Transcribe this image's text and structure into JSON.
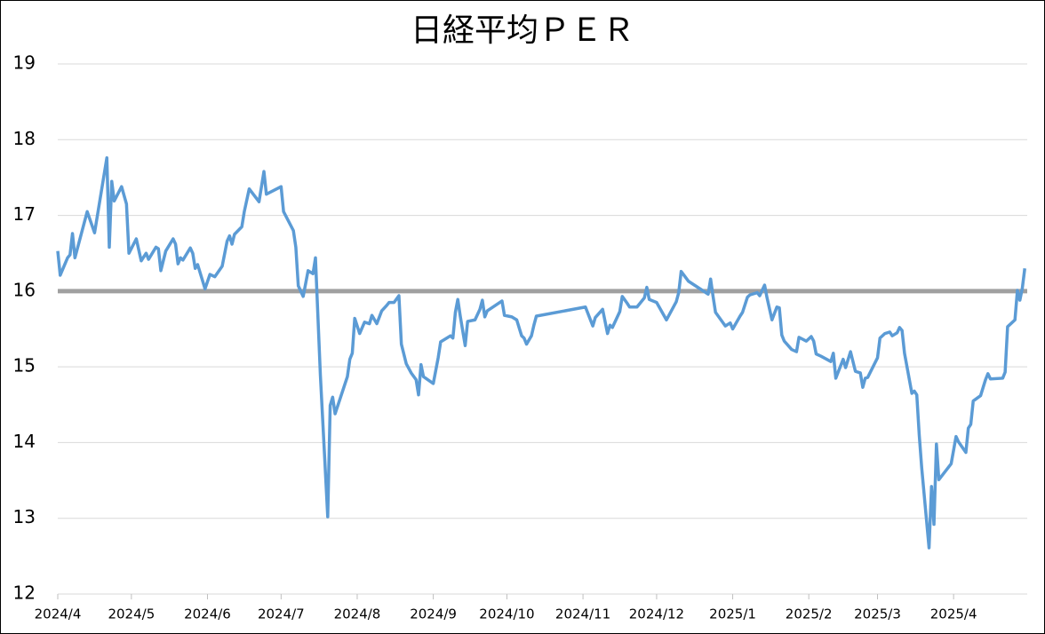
{
  "chart_data": {
    "type": "line",
    "title": "日経平均ＰＥＲ",
    "xlim": [
      0,
      395
    ],
    "xticks": [
      {
        "value": 0,
        "label": "2024/4"
      },
      {
        "value": 30,
        "label": "2024/5"
      },
      {
        "value": 61,
        "label": "2024/6"
      },
      {
        "value": 91,
        "label": "2024/7"
      },
      {
        "value": 122,
        "label": "2024/8"
      },
      {
        "value": 153,
        "label": "2024/9"
      },
      {
        "value": 183,
        "label": "2024/10"
      },
      {
        "value": 214,
        "label": "2024/11"
      },
      {
        "value": 244,
        "label": "2024/12"
      },
      {
        "value": 275,
        "label": "2025/1"
      },
      {
        "value": 306,
        "label": "2025/2"
      },
      {
        "value": 334,
        "label": "2025/3"
      },
      {
        "value": 365,
        "label": "2025/4"
      }
    ],
    "ylim": [
      12,
      19
    ],
    "yticks": [
      12,
      13,
      14,
      15,
      16,
      17,
      18,
      19
    ],
    "grid": true,
    "reference_line": 16,
    "reference_color": "#a0a0a0",
    "x": [
      0,
      1,
      4,
      5,
      6,
      7,
      12,
      15,
      20,
      21,
      22,
      23,
      26,
      28,
      29,
      32,
      34,
      36,
      37,
      40,
      41,
      42,
      44,
      47,
      48,
      49,
      50,
      51,
      54,
      55,
      56,
      57,
      60,
      62,
      64,
      67,
      69,
      70,
      71,
      72,
      75,
      76,
      78,
      82,
      84,
      85,
      91,
      92,
      96,
      97,
      98,
      100,
      102,
      104,
      105,
      107,
      110,
      111,
      112,
      113,
      118,
      119,
      120,
      121,
      123,
      125,
      127,
      128,
      130,
      132,
      134,
      135,
      137,
      139,
      140,
      142,
      144,
      146,
      147,
      148,
      149,
      153,
      155,
      156,
      160,
      161,
      162,
      163,
      164,
      166,
      167,
      170,
      172,
      173,
      174,
      175,
      181,
      182,
      185,
      187,
      189,
      190,
      191,
      193,
      194,
      195,
      215,
      218,
      219,
      222,
      224,
      225,
      226,
      229,
      230,
      232,
      233,
      236,
      239,
      240,
      241,
      244,
      248,
      251,
      252,
      253,
      254,
      257,
      265,
      266,
      267,
      268,
      272,
      274,
      275,
      278,
      279,
      281,
      282,
      285,
      286,
      287,
      288,
      289,
      291,
      293,
      294,
      295,
      296,
      299,
      301,
      302,
      305,
      307,
      308,
      309,
      311,
      315,
      316,
      317,
      320,
      321,
      323,
      325,
      327,
      328,
      329,
      330,
      334,
      335,
      337,
      339,
      340,
      342,
      343,
      344,
      345,
      348,
      349,
      350,
      351,
      352,
      355,
      356,
      357,
      358,
      359,
      364,
      366,
      367,
      370,
      371,
      372,
      373,
      376,
      378,
      379,
      380,
      385,
      386,
      387,
      390,
      391,
      392,
      393,
      394
    ],
    "series": [
      {
        "name": "PER",
        "color": "#5b9bd5",
        "values": [
          16.53,
          16.21,
          16.44,
          16.48,
          16.76,
          16.44,
          17.05,
          16.77,
          17.76,
          16.58,
          17.45,
          17.19,
          17.38,
          17.15,
          16.5,
          16.69,
          16.4,
          16.5,
          16.42,
          16.58,
          16.56,
          16.27,
          16.53,
          16.69,
          16.62,
          16.36,
          16.44,
          16.41,
          16.57,
          16.5,
          16.3,
          16.35,
          16.03,
          16.22,
          16.19,
          16.33,
          16.66,
          16.73,
          16.62,
          16.75,
          16.85,
          17.05,
          17.35,
          17.18,
          17.58,
          17.28,
          17.38,
          17.05,
          16.8,
          16.58,
          16.07,
          15.93,
          16.27,
          16.23,
          16.44,
          14.89,
          13.02,
          14.49,
          14.6,
          14.38,
          14.87,
          15.1,
          15.18,
          15.64,
          15.44,
          15.59,
          15.57,
          15.68,
          15.57,
          15.74,
          15.81,
          15.85,
          15.85,
          15.94,
          15.3,
          15.04,
          14.92,
          14.83,
          14.63,
          15.03,
          14.87,
          14.78,
          15.12,
          15.33,
          15.41,
          15.38,
          15.72,
          15.89,
          15.67,
          15.28,
          15.6,
          15.62,
          15.76,
          15.88,
          15.66,
          15.74,
          15.87,
          15.68,
          15.66,
          15.62,
          15.41,
          15.38,
          15.3,
          15.41,
          15.55,
          15.67,
          15.79,
          15.54,
          15.65,
          15.76,
          15.44,
          15.55,
          15.52,
          15.73,
          15.93,
          15.84,
          15.79,
          15.79,
          15.91,
          16.05,
          15.89,
          15.85,
          15.62,
          15.8,
          15.86,
          15.98,
          16.26,
          16.13,
          15.96,
          16.16,
          15.93,
          15.72,
          15.54,
          15.58,
          15.5,
          15.67,
          15.72,
          15.92,
          15.95,
          15.98,
          15.94,
          16.01,
          16.08,
          15.91,
          15.62,
          15.79,
          15.78,
          15.42,
          15.34,
          15.23,
          15.2,
          15.39,
          15.34,
          15.4,
          15.34,
          15.17,
          15.14,
          15.07,
          15.18,
          14.85,
          15.1,
          14.99,
          15.2,
          14.94,
          14.92,
          14.73,
          14.85,
          14.86,
          15.12,
          15.38,
          15.44,
          15.46,
          15.41,
          15.45,
          15.52,
          15.48,
          15.18,
          14.65,
          14.68,
          14.63,
          14.1,
          13.67,
          12.61,
          13.42,
          12.92,
          13.98,
          13.51,
          13.72,
          14.08,
          14.01,
          13.87,
          14.19,
          14.24,
          14.55,
          14.62,
          14.83,
          14.91,
          14.84,
          14.85,
          14.93,
          15.53,
          15.62,
          16.01,
          15.88,
          16.04,
          16.3
        ]
      }
    ]
  }
}
